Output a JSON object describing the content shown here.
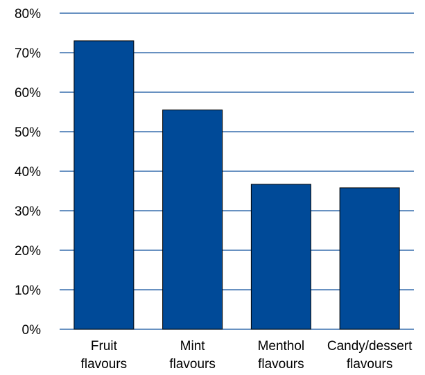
{
  "colors": {
    "bar": "#004a98",
    "bar_edge": "#000000",
    "gridline": "#0d4f9c",
    "text": "#000000"
  },
  "chart_data": {
    "type": "bar",
    "title": "",
    "xlabel": "",
    "ylabel": "",
    "categories": [
      [
        "Fruit",
        "flavours"
      ],
      [
        "Mint",
        "flavours"
      ],
      [
        "Menthol",
        "flavours"
      ],
      [
        "Candy/dessert",
        "flavours"
      ]
    ],
    "values": [
      73,
      55.5,
      36.7,
      35.8
    ],
    "unit": "%",
    "ylim": [
      0,
      80
    ],
    "yticks": [
      {
        "value": 0,
        "label": "0%"
      },
      {
        "value": 10,
        "label": "10%"
      },
      {
        "value": 20,
        "label": "20%"
      },
      {
        "value": 30,
        "label": "30%"
      },
      {
        "value": 40,
        "label": "40%"
      },
      {
        "value": 50,
        "label": "50%"
      },
      {
        "value": 60,
        "label": "60%"
      },
      {
        "value": 70,
        "label": "70%"
      },
      {
        "value": 80,
        "label": "80%"
      }
    ],
    "grid": true,
    "legend": "none"
  }
}
